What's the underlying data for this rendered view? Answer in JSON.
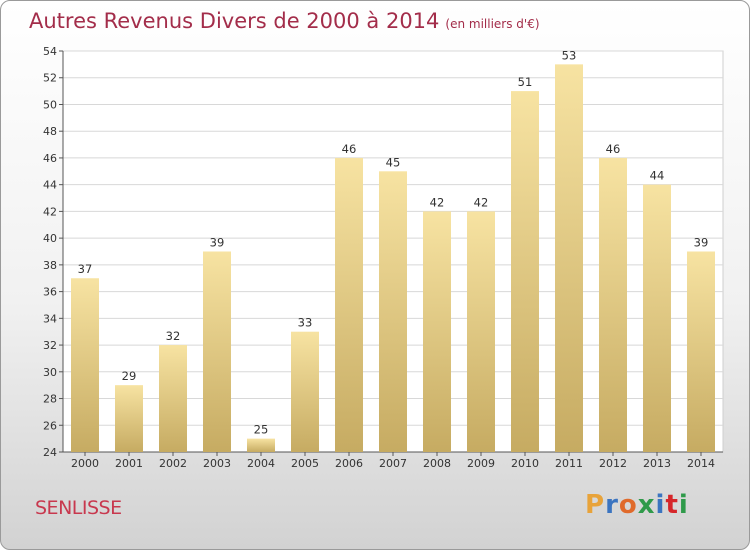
{
  "title": "Autres Revenus Divers de 2000 à 2014",
  "subtitle": "(en milliers d'€)",
  "town": "SENLISSE",
  "logo": {
    "letters": [
      "P",
      "r",
      "o",
      "x",
      "i",
      "t",
      "i"
    ],
    "colors": [
      "#e8a33a",
      "#3b74c0",
      "#e06a2b",
      "#2f9a4a",
      "#3b74c0",
      "#d6262a",
      "#2f9a4a"
    ]
  },
  "colors": {
    "bar_top": "#f7e3a2",
    "bar_bottom": "#c6ab62",
    "title": "#a32d4a",
    "grid": "#d8d8d8"
  },
  "chart_data": {
    "type": "bar",
    "categories": [
      "2000",
      "2001",
      "2002",
      "2003",
      "2004",
      "2005",
      "2006",
      "2007",
      "2008",
      "2009",
      "2010",
      "2011",
      "2012",
      "2013",
      "2014"
    ],
    "values": [
      37,
      29,
      32,
      39,
      25,
      33,
      46,
      45,
      42,
      42,
      51,
      53,
      46,
      44,
      39
    ],
    "title": "Autres Revenus Divers de 2000 à 2014",
    "xlabel": "",
    "ylabel": "",
    "ylim": [
      24,
      54
    ],
    "yticks": [
      24,
      26,
      28,
      30,
      32,
      34,
      36,
      38,
      40,
      42,
      44,
      46,
      48,
      50,
      52,
      54
    ],
    "grid": true
  }
}
